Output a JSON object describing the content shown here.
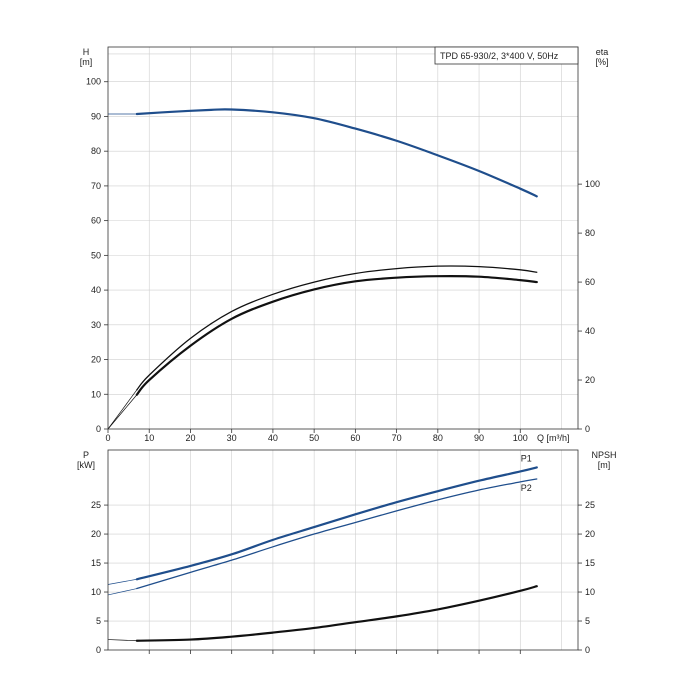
{
  "chart_data": [
    {
      "type": "line",
      "title": "TPD 65-930/2, 3*400 V, 50Hz",
      "xlabel": "Q [m³/h]",
      "ylabel_left": "H\n[m]",
      "ylabel_right": "eta\n[%]",
      "x_ticks": [
        0,
        10,
        20,
        30,
        40,
        50,
        60,
        70,
        80,
        90,
        100
      ],
      "y_ticks_left": [
        0,
        10,
        20,
        30,
        40,
        50,
        60,
        70,
        80,
        90,
        100
      ],
      "y_ticks_right": [
        0,
        20,
        40,
        60,
        80,
        100
      ],
      "xlim": [
        0,
        114
      ],
      "ylim_left": [
        0,
        110
      ],
      "ylim_right": [
        0,
        156
      ],
      "grid": true,
      "series": [
        {
          "role": "head",
          "axis": "left",
          "color": "#1f4e8c",
          "x": [
            0,
            7,
            15,
            25,
            30,
            40,
            50,
            60,
            70,
            80,
            90,
            100,
            104
          ],
          "y": [
            90.7,
            90.7,
            91.3,
            91.9,
            92.0,
            91.2,
            89.5,
            86.5,
            83.0,
            78.8,
            74.3,
            69.2,
            67.0
          ]
        },
        {
          "role": "efficiency-upper",
          "axis": "right",
          "color": "#111111",
          "x": [
            0,
            7,
            10,
            20,
            30,
            40,
            50,
            60,
            70,
            80,
            90,
            100,
            104
          ],
          "y": [
            0,
            16,
            22,
            37,
            48,
            55,
            60,
            63.5,
            65.5,
            66.5,
            66.3,
            65,
            64
          ]
        },
        {
          "role": "efficiency-lower",
          "axis": "right",
          "color": "#111111",
          "x": [
            0,
            7,
            10,
            20,
            30,
            40,
            50,
            60,
            70,
            80,
            90,
            100,
            104
          ],
          "y": [
            0,
            14,
            20,
            34,
            45,
            52,
            57,
            60.3,
            61.8,
            62.4,
            62.2,
            60.8,
            60
          ]
        }
      ]
    },
    {
      "type": "line",
      "ylabel_left": "P\n[kW]",
      "ylabel_right": "NPSH\n[m]",
      "x_ticks": [
        10,
        20,
        30,
        40,
        50,
        60,
        70,
        80,
        90,
        100
      ],
      "y_ticks_left": [
        0,
        5,
        10,
        15,
        20,
        25
      ],
      "y_ticks_right": [
        0,
        5,
        10,
        15,
        20,
        25
      ],
      "xlim": [
        0,
        114
      ],
      "ylim_left": [
        0,
        34.5
      ],
      "ylim_right": [
        0,
        34.5
      ],
      "grid": true,
      "series": [
        {
          "name": "P1",
          "axis": "left",
          "color": "#1f4e8c",
          "x": [
            0,
            7,
            20,
            30,
            40,
            50,
            60,
            70,
            80,
            90,
            100,
            104
          ],
          "y": [
            11.3,
            12.2,
            14.5,
            16.5,
            19.0,
            21.2,
            23.4,
            25.5,
            27.4,
            29.2,
            30.8,
            31.5
          ]
        },
        {
          "name": "P2",
          "axis": "left",
          "color": "#1f4e8c",
          "x": [
            0,
            7,
            20,
            30,
            40,
            50,
            60,
            70,
            80,
            90,
            100,
            104
          ],
          "y": [
            9.5,
            10.6,
            13.4,
            15.5,
            17.8,
            20.0,
            22.0,
            24.0,
            25.9,
            27.6,
            29.0,
            29.5
          ]
        },
        {
          "role": "npsh",
          "axis": "right",
          "color": "#111111",
          "x": [
            0,
            7,
            20,
            30,
            40,
            50,
            60,
            70,
            80,
            90,
            100,
            104
          ],
          "y": [
            1.8,
            1.6,
            1.8,
            2.3,
            3.0,
            3.8,
            4.8,
            5.8,
            7.0,
            8.5,
            10.2,
            11.0
          ]
        }
      ]
    }
  ]
}
